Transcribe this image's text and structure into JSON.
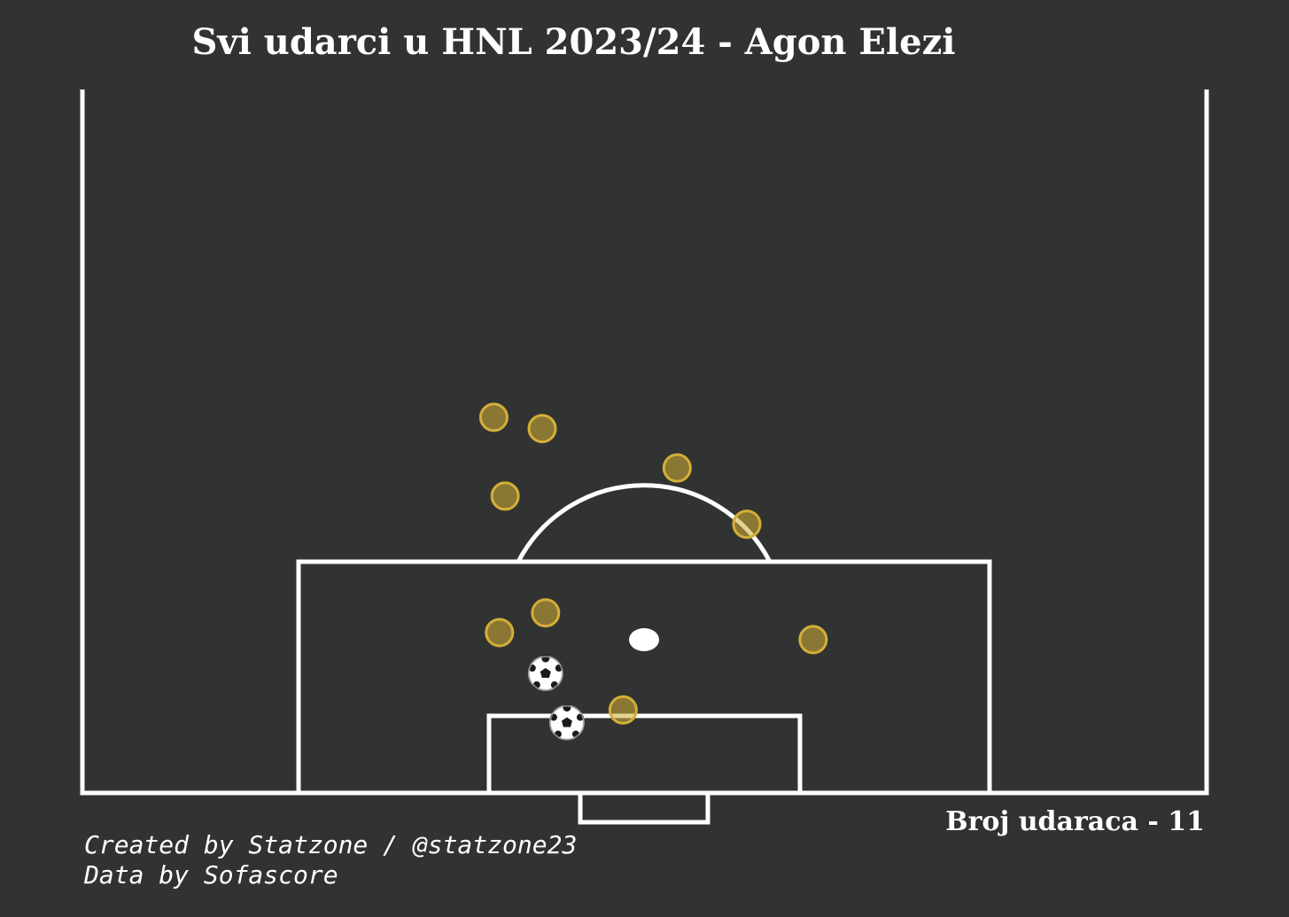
{
  "chart_data": {
    "type": "scatter",
    "title": "Svi udarci u HNL 2023/24 - Agon Elezi",
    "shot_count_label": "Broj udaraca - 11",
    "credits": {
      "created_by": "Created by Statzone / @statzone23",
      "data_source": "Data by Sofascore"
    },
    "pitch": {
      "view": "half",
      "coordinate_system": "width 0-100 across, distance 0-50 from goal line",
      "line_color": "#ffffff",
      "background_color": "#313332"
    },
    "shot_color": "#d4af37",
    "series": [
      {
        "name": "Shots",
        "marker": "circle",
        "points": [
          {
            "x": 36.6,
            "y": 26.7
          },
          {
            "x": 40.9,
            "y": 25.9
          },
          {
            "x": 37.6,
            "y": 21.1
          },
          {
            "x": 52.9,
            "y": 23.1
          },
          {
            "x": 59.1,
            "y": 19.1
          },
          {
            "x": 41.2,
            "y": 12.8
          },
          {
            "x": 37.1,
            "y": 11.4
          },
          {
            "x": 65.0,
            "y": 10.9
          },
          {
            "x": 48.1,
            "y": 5.9
          }
        ]
      },
      {
        "name": "Goals",
        "marker": "ball",
        "points": [
          {
            "x": 41.2,
            "y": 8.5
          },
          {
            "x": 43.1,
            "y": 5.0
          }
        ]
      }
    ]
  }
}
